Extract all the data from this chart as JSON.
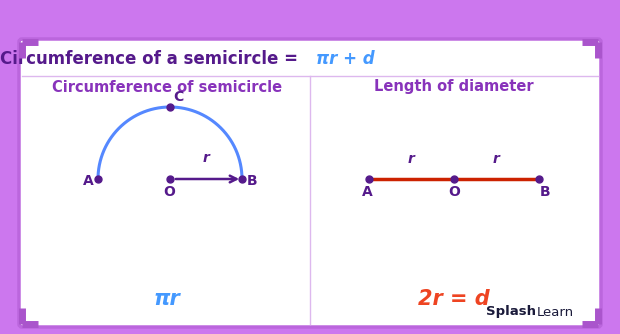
{
  "bg_outer": "#cc77ee",
  "bg_card": "#ffffff",
  "border_color": "#bb66dd",
  "title_text_dark": "Circumference of a semicircle =  ",
  "title_text_blue": "πr + d",
  "title_color_dark": "#551a8b",
  "title_color_blue": "#4499ff",
  "left_panel_title": "Circumference of semicircle",
  "right_panel_title": "Length of diameter",
  "panel_title_color": "#8833bb",
  "semicircle_color": "#5588ff",
  "radius_arrow_color": "#551a8b",
  "diameter_line_color": "#cc2200",
  "point_color": "#551a8b",
  "label_color": "#551a8b",
  "formula_left_color": "#4499ff",
  "formula_right_color": "#ee4422",
  "formula_left": "πr",
  "formula_right": "2r = d",
  "splashlearn_bold": "Splash",
  "splashlearn_normal": "Learn",
  "divider_color": "#ddb8ee",
  "corner_color": "#aa55cc"
}
